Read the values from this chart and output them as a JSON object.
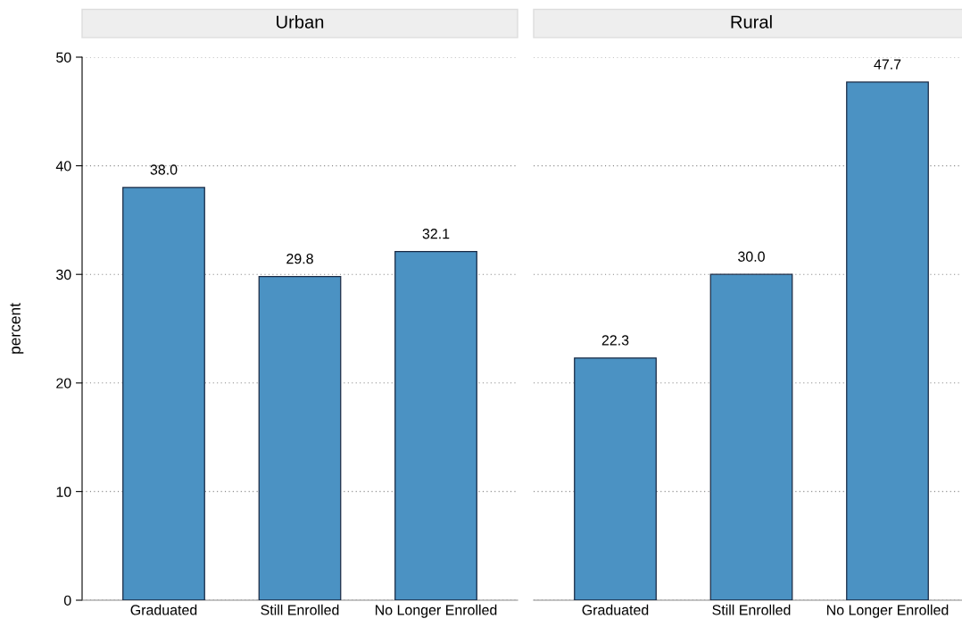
{
  "chart_data": [
    {
      "type": "bar",
      "title": "Urban",
      "ylabel": "percent",
      "categories": [
        "Graduated",
        "Still Enrolled",
        "No Longer Enrolled"
      ],
      "values": [
        38.0,
        29.8,
        32.1
      ],
      "value_labels": [
        "38.0",
        "29.8",
        "32.1"
      ],
      "color": "#4b92c3",
      "ylim": [
        0,
        50
      ],
      "yticks": [
        0,
        10,
        20,
        30,
        40,
        50
      ],
      "grid": "y"
    },
    {
      "type": "bar",
      "title": "Rural",
      "categories": [
        "Graduated",
        "Still Enrolled",
        "No Longer Enrolled"
      ],
      "values": [
        22.3,
        30.0,
        47.7
      ],
      "value_labels": [
        "22.3",
        "30.0",
        "47.7"
      ],
      "color": "#4b92c3",
      "ylim": [
        0,
        50
      ],
      "yticks": [
        0,
        10,
        20,
        30,
        40,
        50
      ],
      "grid": "y",
      "tick_labels": "x"
    }
  ]
}
